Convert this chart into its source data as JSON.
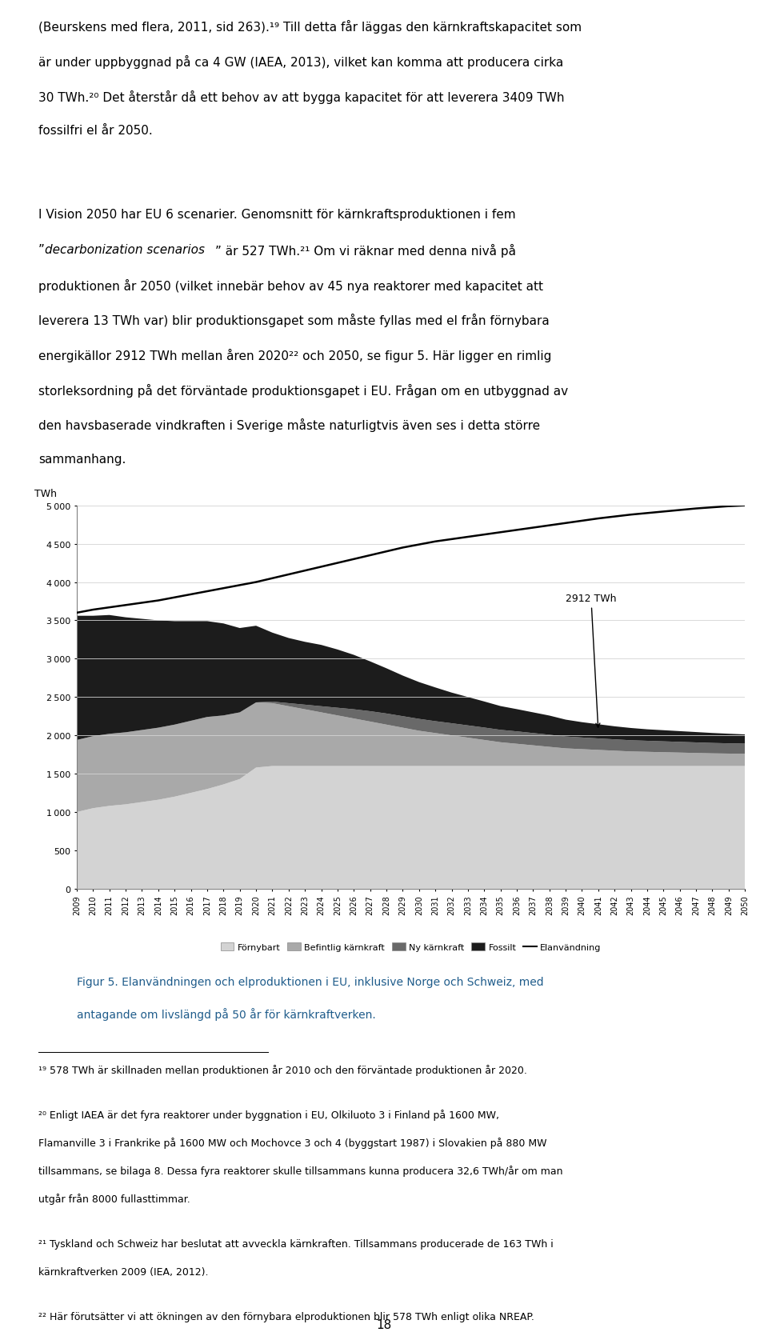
{
  "years": [
    2009,
    2010,
    2011,
    2012,
    2013,
    2014,
    2015,
    2016,
    2017,
    2018,
    2019,
    2020,
    2021,
    2022,
    2023,
    2024,
    2025,
    2026,
    2027,
    2028,
    2029,
    2030,
    2031,
    2032,
    2033,
    2034,
    2035,
    2036,
    2037,
    2038,
    2039,
    2040,
    2041,
    2042,
    2043,
    2044,
    2045,
    2046,
    2047,
    2048,
    2049,
    2050
  ],
  "fornybart": [
    1000,
    1050,
    1080,
    1100,
    1130,
    1160,
    1200,
    1250,
    1300,
    1360,
    1430,
    1580,
    1600,
    1600,
    1600,
    1600,
    1600,
    1600,
    1600,
    1600,
    1600,
    1600,
    1600,
    1600,
    1600,
    1600,
    1600,
    1600,
    1600,
    1600,
    1600,
    1600,
    1600,
    1600,
    1600,
    1600,
    1600,
    1600,
    1600,
    1600,
    1600,
    1600
  ],
  "befintlig_karnkraft": [
    940,
    940,
    940,
    940,
    940,
    940,
    940,
    940,
    940,
    900,
    870,
    850,
    820,
    780,
    740,
    700,
    660,
    620,
    580,
    540,
    500,
    460,
    430,
    400,
    370,
    340,
    310,
    290,
    270,
    250,
    230,
    220,
    210,
    200,
    190,
    185,
    180,
    175,
    170,
    165,
    162,
    160
  ],
  "ny_karnkraft": [
    0,
    0,
    0,
    0,
    0,
    0,
    0,
    0,
    0,
    0,
    0,
    0,
    20,
    40,
    60,
    80,
    100,
    120,
    135,
    145,
    150,
    155,
    155,
    158,
    160,
    162,
    162,
    162,
    160,
    158,
    155,
    152,
    150,
    148,
    146,
    144,
    142,
    140,
    138,
    136,
    134,
    132
  ],
  "fossilt": [
    1620,
    1570,
    1550,
    1500,
    1450,
    1400,
    1350,
    1300,
    1250,
    1200,
    1100,
    1000,
    900,
    850,
    820,
    800,
    760,
    710,
    650,
    590,
    530,
    480,
    440,
    400,
    370,
    340,
    310,
    290,
    270,
    250,
    220,
    200,
    185,
    170,
    160,
    150,
    145,
    140,
    135,
    130,
    125,
    120
  ],
  "elanvandning": [
    3600,
    3640,
    3670,
    3700,
    3730,
    3760,
    3800,
    3840,
    3880,
    3920,
    3960,
    4000,
    4050,
    4100,
    4150,
    4200,
    4250,
    4300,
    4350,
    4400,
    4450,
    4490,
    4530,
    4560,
    4590,
    4620,
    4650,
    4680,
    4710,
    4740,
    4770,
    4800,
    4830,
    4855,
    4880,
    4900,
    4920,
    4940,
    4960,
    4975,
    4990,
    5000
  ],
  "annotation_text": "2912 TWh",
  "ylabel": "TWh",
  "ylim": [
    0,
    5000
  ],
  "yticks": [
    0,
    500,
    1000,
    1500,
    2000,
    2500,
    3000,
    3500,
    4000,
    4500,
    5000
  ],
  "color_fornybart": "#d3d3d3",
  "color_befintlig": "#a9a9a9",
  "color_ny": "#696969",
  "color_fossilt": "#1c1c1c",
  "color_line": "#000000",
  "legend_labels": [
    "Förnybart",
    "Befintlig kärnkraft",
    "Ny kärnkraft",
    "Fossilt",
    "Elanvändning"
  ],
  "caption_line1": "Figur 5. Elanvändningen och elproduktionen i EU, inklusive Norge och Schweiz, med",
  "caption_line2": "antagande om livslängd på 50 år för kärnkraftverken.",
  "caption_color": "#1f5c8b",
  "para1_lines": [
    "(Beurskens med flera, 2011, sid 263).¹⁹ Till detta får läggas den kärnkraftskapacitet som",
    "är under uppbyggnad på ca 4 GW (IAEA, 2013), vilket kan komma att producera cirka",
    "30 TWh.²⁰ Det återstår då ett behov av att bygga kapacitet för att leverera 3409 TWh",
    "fossilfri el år 2050."
  ],
  "para2_line1": "I Vision 2050 har EU 6 scenarier. Genomsnitt för kärnkraftsproduktionen i fem",
  "para2_italic_prefix": "”",
  "para2_italic": "decarbonization scenarios",
  "para2_italic_suffix": "” är 527 TWh.²¹ Om vi räknar med denna nivå på",
  "para2_rest_lines": [
    "produktionen år 2050 (vilket innebär behov av 45 nya reaktorer med kapacitet att",
    "leverera 13 TWh var) blir produktionsgapet som måste fyllas med el från förnybara",
    "energikällor 2912 TWh mellan åren 2020²² och 2050, se figur 5. Här ligger en rimlig",
    "storleksordning på det förväntade produktionsgapet i EU. Frågan om en utbyggnad av",
    "den havsbaserade vindkraften i Sverige måste naturligtvis även ses i detta större",
    "sammanhang."
  ],
  "fn1": "¹⁹ 578 TWh är skillnaden mellan produktionen år 2010 och den förväntade produktionen år 2020.",
  "fn2_lines": [
    "²⁰ Enligt IAEA är det fyra reaktorer under byggnation i EU, Olkiluoto 3 i Finland på 1600 MW,",
    "Flamanville 3 i Frankrike på 1600 MW och Mochovce 3 och 4 (byggstart 1987) i Slovakien på 880 MW",
    "tillsammans, se bilaga 8. Dessa fyra reaktorer skulle tillsammans kunna producera 32,6 TWh/år om man",
    "utgår från 8000 fullasttimmar."
  ],
  "fn3_lines": [
    "²¹ Tyskland och Schweiz har beslutat att avveckla kärnkraften. Tillsammans producerade de 163 TWh i",
    "kärnkraftverken 2009 (IEA, 2012)."
  ],
  "fn4": "²² Här förutsätter vi att ökningen av den förnybara elproduktionen blir 578 TWh enligt olika NREAP.",
  "page_number": "18"
}
